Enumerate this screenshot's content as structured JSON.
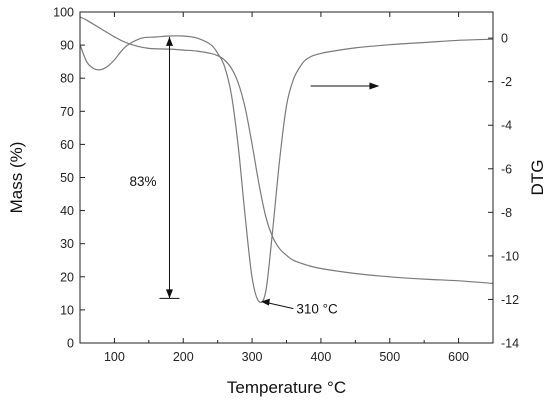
{
  "chart_data": {
    "type": "line",
    "title": "",
    "xlabel": "Temperature °C",
    "ylabel_left": "Mass (%)",
    "ylabel_right": "DTG",
    "xlim": [
      50,
      650
    ],
    "ylim_left": [
      0,
      100
    ],
    "ylim_right": [
      -14,
      1.2
    ],
    "x_ticks": [
      100,
      200,
      300,
      400,
      500,
      600
    ],
    "y_left_ticks": [
      0,
      10,
      20,
      30,
      40,
      50,
      60,
      70,
      80,
      90,
      100
    ],
    "y_right_ticks": [
      0,
      -2,
      -4,
      -6,
      -8,
      -10,
      -12,
      -14
    ],
    "grid": false,
    "series": [
      {
        "axis": "left",
        "color": "#7a7a7a",
        "x": [
          50,
          60,
          80,
          100,
          120,
          150,
          180,
          200,
          220,
          240,
          250,
          260,
          270,
          280,
          290,
          300,
          310,
          320,
          330,
          340,
          350,
          360,
          380,
          400,
          450,
          500,
          550,
          600,
          650
        ],
        "values": [
          98.5,
          97.5,
          95.0,
          92.5,
          90.5,
          89.0,
          88.8,
          88.5,
          88.2,
          87.5,
          86.8,
          85.5,
          83.0,
          78.5,
          71.0,
          60.0,
          48.0,
          38.0,
          32.0,
          28.5,
          26.5,
          25.0,
          23.5,
          22.5,
          21.0,
          20.0,
          19.3,
          18.8,
          18.0
        ]
      },
      {
        "axis": "right",
        "color": "#7a7a7a",
        "x": [
          50,
          60,
          70,
          80,
          90,
          100,
          110,
          120,
          140,
          160,
          180,
          200,
          220,
          240,
          250,
          260,
          270,
          280,
          290,
          300,
          310,
          320,
          330,
          340,
          350,
          360,
          370,
          380,
          400,
          450,
          500,
          550,
          600,
          650
        ],
        "values": [
          -0.3,
          -1.1,
          -1.4,
          -1.45,
          -1.3,
          -1.0,
          -0.6,
          -0.3,
          0.0,
          0.05,
          0.1,
          0.1,
          0.0,
          -0.3,
          -0.7,
          -1.3,
          -2.6,
          -5.0,
          -8.2,
          -11.0,
          -12.1,
          -11.6,
          -8.8,
          -5.6,
          -3.1,
          -1.9,
          -1.3,
          -0.95,
          -0.7,
          -0.45,
          -0.3,
          -0.2,
          -0.1,
          -0.05
        ]
      }
    ],
    "annotations": {
      "mass_loss_label": "83%",
      "peak_label": "310 °C"
    }
  }
}
